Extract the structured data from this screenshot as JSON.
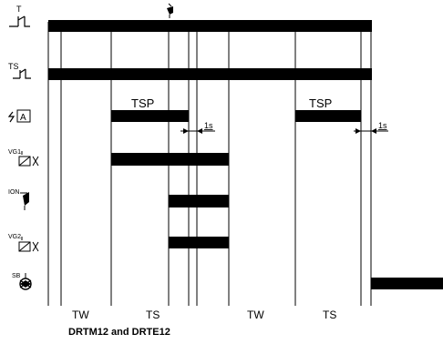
{
  "rows": [
    {
      "id": "t",
      "label": "T"
    },
    {
      "id": "ts",
      "label": "TS"
    },
    {
      "id": "alarm",
      "label": "A"
    },
    {
      "id": "vg1",
      "label": "VG1"
    },
    {
      "id": "ion",
      "label": "ION"
    },
    {
      "id": "vg2",
      "label": "VG2"
    },
    {
      "id": "sb",
      "label": "SB"
    }
  ],
  "tsp_labels": [
    "TSP",
    "TSP"
  ],
  "delay_labels": [
    "1s",
    "1s"
  ],
  "phase_labels": [
    "TW",
    "TS",
    "TW",
    "TS"
  ],
  "caption": "DRTM12 and DRTE12"
}
